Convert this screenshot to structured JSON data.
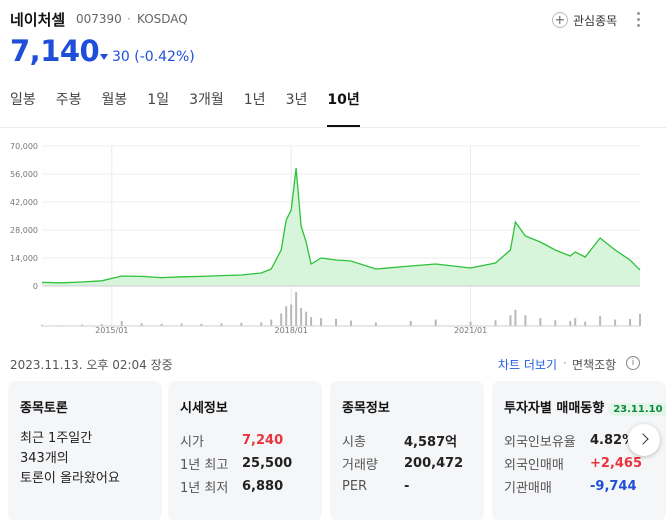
{
  "stock": {
    "name": "네이처셀",
    "code": "007390",
    "market": "KOSDAQ",
    "price": "7,140",
    "change_amount": "30",
    "change_pct": "(-0.42%)",
    "direction": "down"
  },
  "header": {
    "favorite_label": "관심종목"
  },
  "tabs": [
    {
      "label": "일봉",
      "active": false
    },
    {
      "label": "주봉",
      "active": false
    },
    {
      "label": "월봉",
      "active": false
    },
    {
      "label": "1일",
      "active": false
    },
    {
      "label": "3개월",
      "active": false
    },
    {
      "label": "1년",
      "active": false
    },
    {
      "label": "3년",
      "active": false
    },
    {
      "label": "10년",
      "active": true
    }
  ],
  "chart_data": {
    "type": "area",
    "x": [
      "2013/11",
      "2014/03",
      "2014/07",
      "2014/11",
      "2015/03",
      "2015/07",
      "2015/11",
      "2016/03",
      "2016/07",
      "2016/11",
      "2017/03",
      "2017/07",
      "2017/09",
      "2017/11",
      "2017/12",
      "2018/01",
      "2018/02",
      "2018/03",
      "2018/04",
      "2018/05",
      "2018/07",
      "2018/10",
      "2019/01",
      "2019/06",
      "2020/01",
      "2020/06",
      "2021/01",
      "2021/06",
      "2021/09",
      "2021/10",
      "2021/12",
      "2022/03",
      "2022/06",
      "2022/09",
      "2022/10",
      "2022/12",
      "2023/03",
      "2023/06",
      "2023/09",
      "2023/11"
    ],
    "series": [
      {
        "values": [
          1800,
          1600,
          2000,
          2600,
          5000,
          4800,
          4200,
          4600,
          4800,
          5200,
          5500,
          6500,
          8500,
          18000,
          33000,
          38000,
          59000,
          30000,
          22000,
          11000,
          14000,
          13000,
          12500,
          8500,
          10000,
          11000,
          9000,
          11500,
          18000,
          32000,
          25000,
          22000,
          18000,
          15000,
          17000,
          14500,
          24000,
          18000,
          13000,
          8000
        ]
      }
    ],
    "volume": [
      3,
      2,
      4,
      5,
      14,
      8,
      6,
      7,
      6,
      8,
      9,
      10,
      18,
      35,
      55,
      60,
      95,
      50,
      40,
      25,
      22,
      20,
      15,
      10,
      14,
      18,
      12,
      16,
      30,
      45,
      30,
      22,
      16,
      14,
      22,
      12,
      28,
      18,
      20,
      34
    ],
    "x_ticks": [
      "2015/01",
      "2018/01",
      "2021/01"
    ],
    "y_ticks": [
      "70,000",
      "56,000",
      "42,000",
      "28,000",
      "14,000",
      "0"
    ],
    "ylim": [
      0,
      70000
    ],
    "line_color": "#2ec13a",
    "fill_color": "#d7f5da",
    "grid": true
  },
  "footer": {
    "date": "2023.11.13. 오후 02:04 장중",
    "chart_more": "차트 더보기",
    "disclaimer": "면책조항",
    "info_glyph": "i"
  },
  "cards": {
    "talk": {
      "title": "종목토론",
      "line1": "최근 1주일간",
      "count": "343개의",
      "line3": "토론이 올라왔어요"
    },
    "quote": {
      "title": "시세정보",
      "rows": [
        {
          "label": "시가",
          "value": "7,240",
          "tone": "up"
        },
        {
          "label": "1년 최고",
          "value": "25,500",
          "tone": ""
        },
        {
          "label": "1년 최저",
          "value": "6,880",
          "tone": ""
        }
      ]
    },
    "info": {
      "title": "종목정보",
      "rows": [
        {
          "label": "시총",
          "value": "4,587억"
        },
        {
          "label": "거래량",
          "value": "200,472"
        },
        {
          "label": "PER",
          "value": "-"
        }
      ]
    },
    "investor": {
      "title": "투자자별 매매동향",
      "date": "23.11.10",
      "rows": [
        {
          "label": "외국인보유율",
          "value": "4.82%",
          "tone": ""
        },
        {
          "label": "외국인매매",
          "value": "+2,465",
          "tone": "up"
        },
        {
          "label": "기관매매",
          "value": "-9,744",
          "tone": "down"
        }
      ]
    }
  }
}
